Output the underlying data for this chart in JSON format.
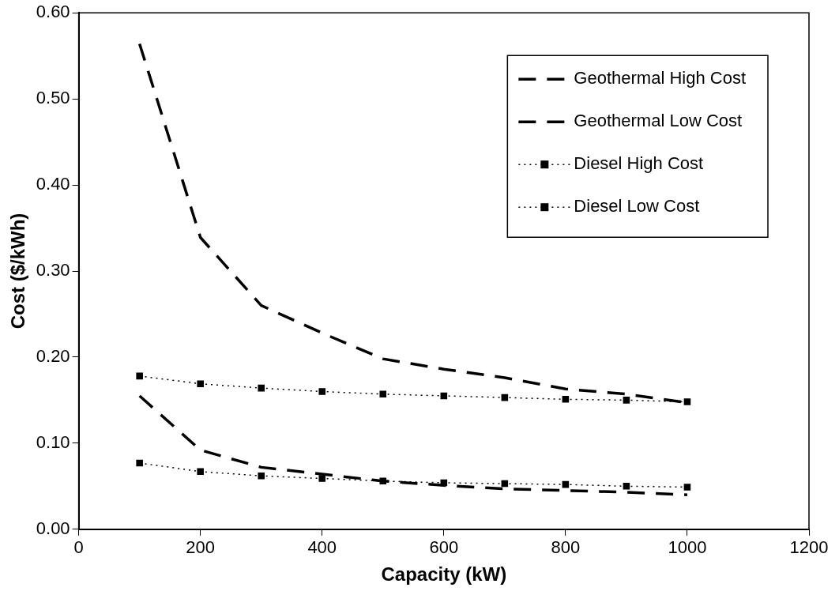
{
  "chart_data": {
    "type": "line",
    "xlabel": "Capacity (kW)",
    "ylabel": "Cost ($/kWh)",
    "x": [
      100,
      200,
      300,
      400,
      500,
      600,
      700,
      800,
      900,
      1000
    ],
    "xlim": [
      0,
      1200
    ],
    "xticks": [
      0,
      200,
      400,
      600,
      800,
      1000,
      1200
    ],
    "ylim": [
      0,
      0.6
    ],
    "yticks": [
      {
        "value": 0,
        "label": "0.00"
      },
      {
        "value": 0.1,
        "label": "0.10"
      },
      {
        "value": 0.2,
        "label": "0.20"
      },
      {
        "value": 0.3,
        "label": "0.30"
      },
      {
        "value": 0.4,
        "label": "0.40"
      },
      {
        "value": 0.5,
        "label": "0.50"
      },
      {
        "value": 0.6,
        "label": "0.60"
      }
    ],
    "grid": false,
    "legend": "top right",
    "series": [
      {
        "name": "Geothermal High Cost",
        "color": "#000000",
        "line_style": "dashed",
        "marker": "none",
        "values": [
          0.564,
          0.339,
          0.26,
          0.228,
          0.198,
          0.186,
          0.176,
          0.163,
          0.157,
          0.147
        ]
      },
      {
        "name": "Geothermal Low Cost",
        "color": "#000000",
        "line_style": "dashed",
        "marker": "none",
        "values": [
          0.155,
          0.092,
          0.072,
          0.064,
          0.056,
          0.051,
          0.047,
          0.045,
          0.043,
          0.04
        ]
      },
      {
        "name": "Diesel High Cost",
        "color": "#000000",
        "line_style": "dotted",
        "marker": "square",
        "values": [
          0.178,
          0.169,
          0.164,
          0.16,
          0.157,
          0.155,
          0.153,
          0.151,
          0.15,
          0.148
        ]
      },
      {
        "name": "Diesel Low Cost",
        "color": "#000000",
        "line_style": "dotted",
        "marker": "square",
        "values": [
          0.077,
          0.067,
          0.062,
          0.059,
          0.056,
          0.054,
          0.053,
          0.052,
          0.05,
          0.049
        ]
      }
    ]
  }
}
